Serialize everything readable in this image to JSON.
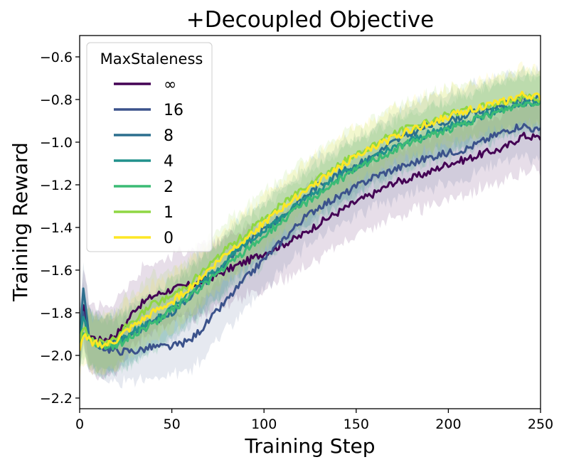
{
  "chart_data": {
    "type": "line",
    "title": "+Decoupled Objective",
    "xlabel": "Training Step",
    "ylabel": "Training Reward",
    "xlim": [
      0,
      250
    ],
    "ylim": [
      -2.25,
      -0.5
    ],
    "xticks": [
      0,
      50,
      100,
      150,
      200,
      250
    ],
    "yticks": [
      -2.2,
      -2.0,
      -1.8,
      -1.6,
      -1.4,
      -1.2,
      -1.0,
      -0.8,
      -0.6
    ],
    "xtick_labels": [
      "0",
      "50",
      "100",
      "150",
      "200",
      "250"
    ],
    "ytick_labels": [
      "−2.2",
      "−2.0",
      "−1.8",
      "−1.6",
      "−1.4",
      "−1.2",
      "−1.0",
      "−0.8",
      "−0.6"
    ],
    "grid": false,
    "legend": {
      "title": "MaxStaleness",
      "position": "upper-left"
    },
    "x": [
      0,
      2,
      5,
      10,
      15,
      20,
      25,
      30,
      40,
      50,
      60,
      70,
      80,
      90,
      100,
      110,
      120,
      130,
      140,
      150,
      160,
      170,
      180,
      190,
      200,
      210,
      220,
      230,
      240,
      250
    ],
    "series": [
      {
        "name": "∞",
        "color": "#440154",
        "band": 0.16,
        "values": [
          -1.95,
          -1.75,
          -1.9,
          -1.93,
          -1.92,
          -1.9,
          -1.85,
          -1.78,
          -1.72,
          -1.69,
          -1.67,
          -1.64,
          -1.6,
          -1.56,
          -1.52,
          -1.48,
          -1.44,
          -1.38,
          -1.33,
          -1.28,
          -1.24,
          -1.19,
          -1.17,
          -1.14,
          -1.1,
          -1.08,
          -1.05,
          -1.03,
          -0.97,
          -0.98
        ]
      },
      {
        "name": "16",
        "color": "#3b528b",
        "band": 0.14,
        "values": [
          -1.92,
          -1.8,
          -1.93,
          -1.95,
          -1.97,
          -1.98,
          -1.98,
          -1.98,
          -1.96,
          -1.96,
          -1.93,
          -1.84,
          -1.74,
          -1.64,
          -1.55,
          -1.46,
          -1.37,
          -1.3,
          -1.26,
          -1.21,
          -1.16,
          -1.13,
          -1.1,
          -1.07,
          -1.05,
          -1.03,
          -0.99,
          -0.95,
          -0.92,
          -0.95
        ]
      },
      {
        "name": "8",
        "color": "#2c6f8e",
        "band": 0.13,
        "values": [
          -1.95,
          -1.7,
          -1.9,
          -1.95,
          -1.96,
          -1.94,
          -1.92,
          -1.89,
          -1.84,
          -1.8,
          -1.72,
          -1.64,
          -1.56,
          -1.48,
          -1.41,
          -1.35,
          -1.27,
          -1.2,
          -1.15,
          -1.11,
          -1.06,
          -1.0,
          -0.96,
          -0.92,
          -0.9,
          -0.87,
          -0.85,
          -0.82,
          -0.8,
          -0.8
        ]
      },
      {
        "name": "4",
        "color": "#21918c",
        "band": 0.13,
        "values": [
          -1.94,
          -1.82,
          -1.92,
          -1.95,
          -1.95,
          -1.94,
          -1.91,
          -1.88,
          -1.84,
          -1.78,
          -1.7,
          -1.63,
          -1.55,
          -1.48,
          -1.41,
          -1.35,
          -1.28,
          -1.22,
          -1.16,
          -1.12,
          -1.07,
          -1.03,
          -0.99,
          -0.96,
          -0.93,
          -0.9,
          -0.87,
          -0.84,
          -0.82,
          -0.81
        ]
      },
      {
        "name": "2",
        "color": "#3bbb75",
        "band": 0.13,
        "values": [
          -1.96,
          -1.88,
          -1.92,
          -1.95,
          -1.96,
          -1.95,
          -1.93,
          -1.9,
          -1.85,
          -1.79,
          -1.72,
          -1.65,
          -1.58,
          -1.51,
          -1.44,
          -1.37,
          -1.3,
          -1.24,
          -1.18,
          -1.13,
          -1.08,
          -1.04,
          -1.0,
          -0.97,
          -0.94,
          -0.91,
          -0.88,
          -0.85,
          -0.82,
          -0.81
        ]
      },
      {
        "name": "1",
        "color": "#8fd744",
        "band": 0.13,
        "values": [
          -1.94,
          -1.86,
          -1.92,
          -1.94,
          -1.94,
          -1.92,
          -1.87,
          -1.83,
          -1.76,
          -1.72,
          -1.66,
          -1.58,
          -1.5,
          -1.43,
          -1.36,
          -1.29,
          -1.22,
          -1.16,
          -1.11,
          -1.06,
          -1.01,
          -0.96,
          -0.93,
          -0.9,
          -0.87,
          -0.85,
          -0.83,
          -0.81,
          -0.79,
          -0.8
        ]
      },
      {
        "name": "0",
        "color": "#fde725",
        "band": 0.13,
        "values": [
          -1.99,
          -1.9,
          -1.93,
          -1.95,
          -1.95,
          -1.93,
          -1.89,
          -1.86,
          -1.8,
          -1.75,
          -1.68,
          -1.6,
          -1.52,
          -1.45,
          -1.38,
          -1.31,
          -1.24,
          -1.18,
          -1.12,
          -1.07,
          -1.02,
          -0.98,
          -0.94,
          -0.91,
          -0.88,
          -0.85,
          -0.83,
          -0.81,
          -0.78,
          -0.79
        ]
      }
    ]
  }
}
